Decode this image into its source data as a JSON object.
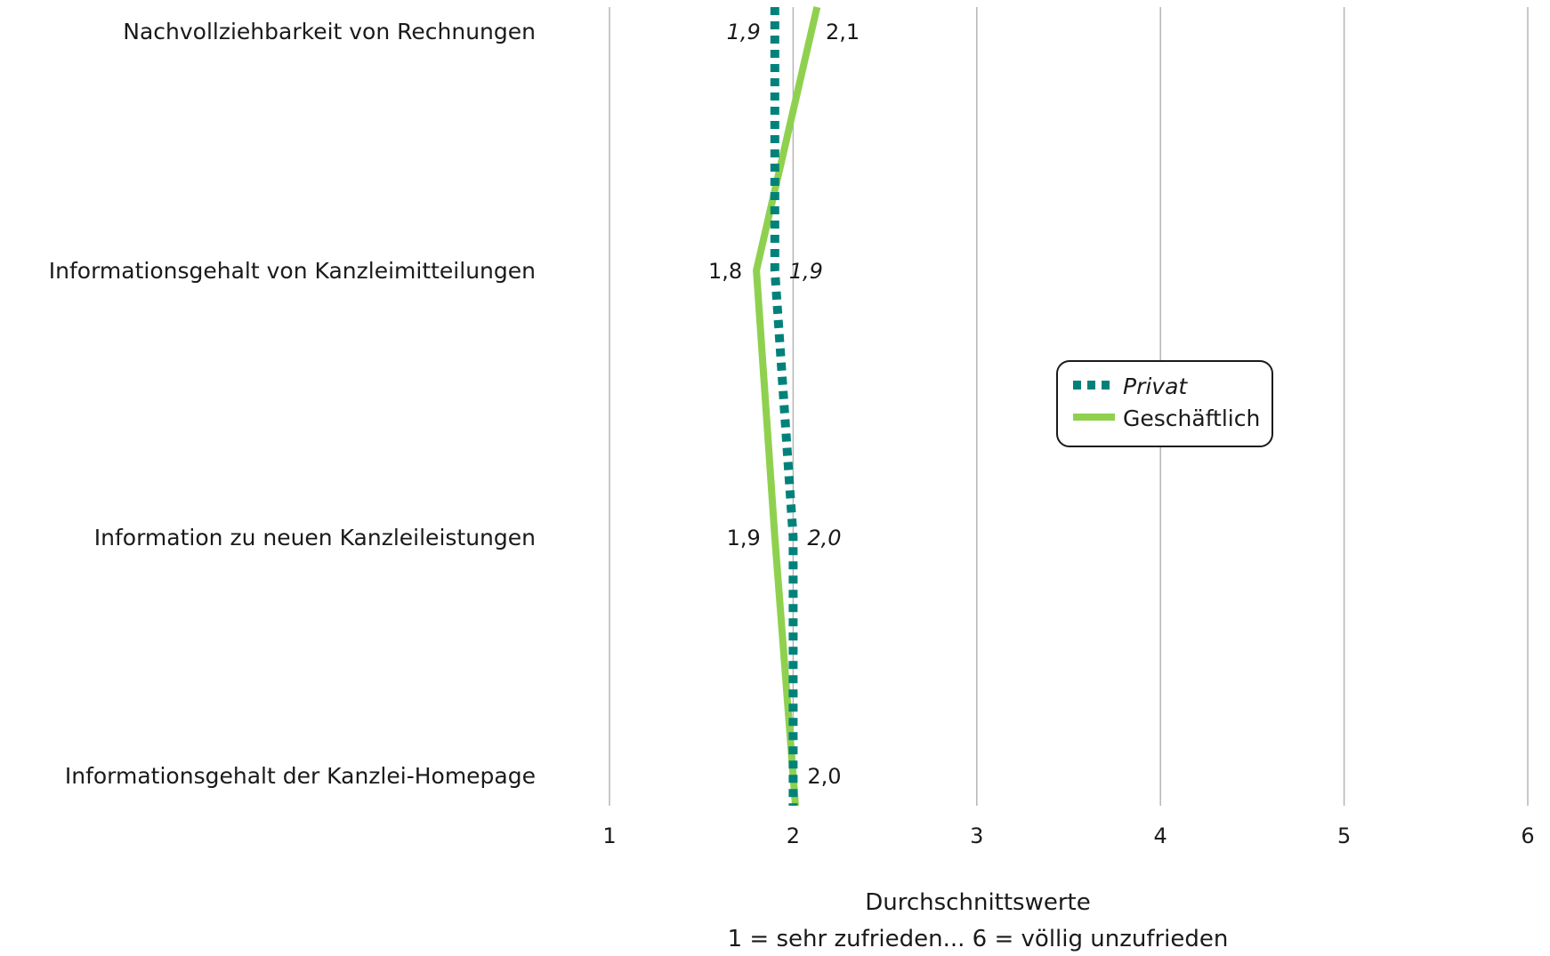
{
  "chart_data": {
    "type": "line",
    "orientation": "horizontal-values",
    "categories": [
      "Nachvollziehbarkeit von Rechnungen",
      "Informationsgehalt von Kanzleimitteilungen",
      "Information zu neuen Kanzleileistungen",
      "Informationsgehalt der Kanzlei-Homepage"
    ],
    "series": [
      {
        "name": "Privat",
        "values": [
          1.9,
          1.9,
          2.0,
          2.0
        ],
        "labels": [
          "1,9",
          "1,9",
          "2,0",
          ""
        ],
        "color": "#00827a",
        "style": "dotted",
        "italic": true
      },
      {
        "name": "Geschäftlich",
        "values": [
          2.1,
          1.8,
          1.9,
          2.0
        ],
        "labels": [
          "2,1",
          "1,8",
          "1,9",
          "2,0"
        ],
        "color": "#8fd14f",
        "style": "solid",
        "italic": false
      }
    ],
    "xlim": [
      1,
      6
    ],
    "xticks": [
      "1",
      "2",
      "3",
      "4",
      "5",
      "6"
    ],
    "xlabel": "Durchschnittswerte",
    "xlabel2": "1 = sehr zufrieden... 6 = völlig unzufrieden",
    "grid": "vertical",
    "legend": "center-right"
  }
}
